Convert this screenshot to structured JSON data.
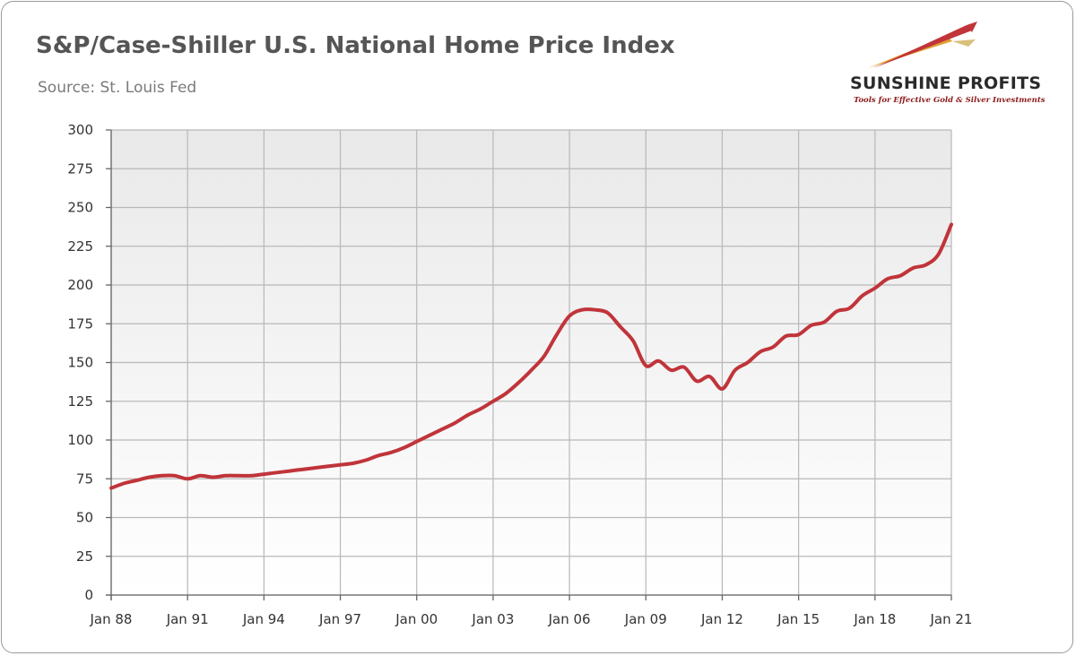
{
  "header": {
    "title": "S&P/Case-Shiller U.S. National Home Price Index",
    "subtitle": "Source: St. Louis Fed"
  },
  "logo": {
    "name": "SUNSHINE PROFITS",
    "tagline": "Tools for Effective Gold & Silver Investments",
    "colors": {
      "primary": "#c0343a",
      "secondary": "#e0a030"
    }
  },
  "chart_data": {
    "type": "line",
    "title": "S&P/Case-Shiller U.S. National Home Price Index",
    "subtitle": "Source: St. Louis Fed",
    "xlabel": "",
    "ylabel": "",
    "ylim": [
      0,
      300
    ],
    "y_ticks": [
      0,
      25,
      50,
      75,
      100,
      125,
      150,
      175,
      200,
      225,
      250,
      275,
      300
    ],
    "y_tick_labels": [
      "0",
      "25",
      "50",
      "75",
      "100",
      "125",
      "150",
      "175",
      "200",
      "225",
      "250",
      "275",
      "300"
    ],
    "x_ticks": [
      1988,
      1991,
      1994,
      1997,
      2000,
      2003,
      2006,
      2009,
      2012,
      2015,
      2018,
      2021
    ],
    "x_tick_labels": [
      "Jan 88",
      "Jan 91",
      "Jan 94",
      "Jan 97",
      "Jan 00",
      "Jan 03",
      "Jan 06",
      "Jan 09",
      "Jan 12",
      "Jan 15",
      "Jan 18",
      "Jan 21"
    ],
    "grid": true,
    "legend": "none",
    "line_color": "#c0343a",
    "series": [
      {
        "x": [
          1988.0,
          1988.5,
          1989.0,
          1989.5,
          1990.0,
          1990.5,
          1991.0,
          1991.5,
          1992.0,
          1992.5,
          1993.0,
          1993.5,
          1994.0,
          1994.5,
          1995.0,
          1995.5,
          1996.0,
          1996.5,
          1997.0,
          1997.5,
          1998.0,
          1998.5,
          1999.0,
          1999.5,
          2000.0,
          2000.5,
          2001.0,
          2001.5,
          2002.0,
          2002.5,
          2003.0,
          2003.5,
          2004.0,
          2004.5,
          2005.0,
          2005.5,
          2006.0,
          2006.5,
          2007.0,
          2007.5,
          2008.0,
          2008.5,
          2009.0,
          2009.5,
          2010.0,
          2010.5,
          2011.0,
          2011.5,
          2012.0,
          2012.5,
          2013.0,
          2013.5,
          2014.0,
          2014.5,
          2015.0,
          2015.5,
          2016.0,
          2016.5,
          2017.0,
          2017.5,
          2018.0,
          2018.5,
          2019.0,
          2019.5,
          2020.0,
          2020.5,
          2021.0
        ],
        "values": [
          69,
          72,
          74,
          76,
          77,
          77,
          75,
          77,
          76,
          77,
          77,
          77,
          78,
          79,
          80,
          81,
          82,
          83,
          84,
          85,
          87,
          90,
          92,
          95,
          99,
          103,
          107,
          111,
          116,
          120,
          125,
          130,
          137,
          145,
          154,
          168,
          180,
          184,
          184,
          182,
          173,
          164,
          148,
          151,
          145,
          147,
          138,
          141,
          133,
          145,
          150,
          157,
          160,
          167,
          168,
          174,
          176,
          183,
          185,
          193,
          198,
          204,
          206,
          211,
          213,
          220,
          239
        ]
      }
    ]
  }
}
